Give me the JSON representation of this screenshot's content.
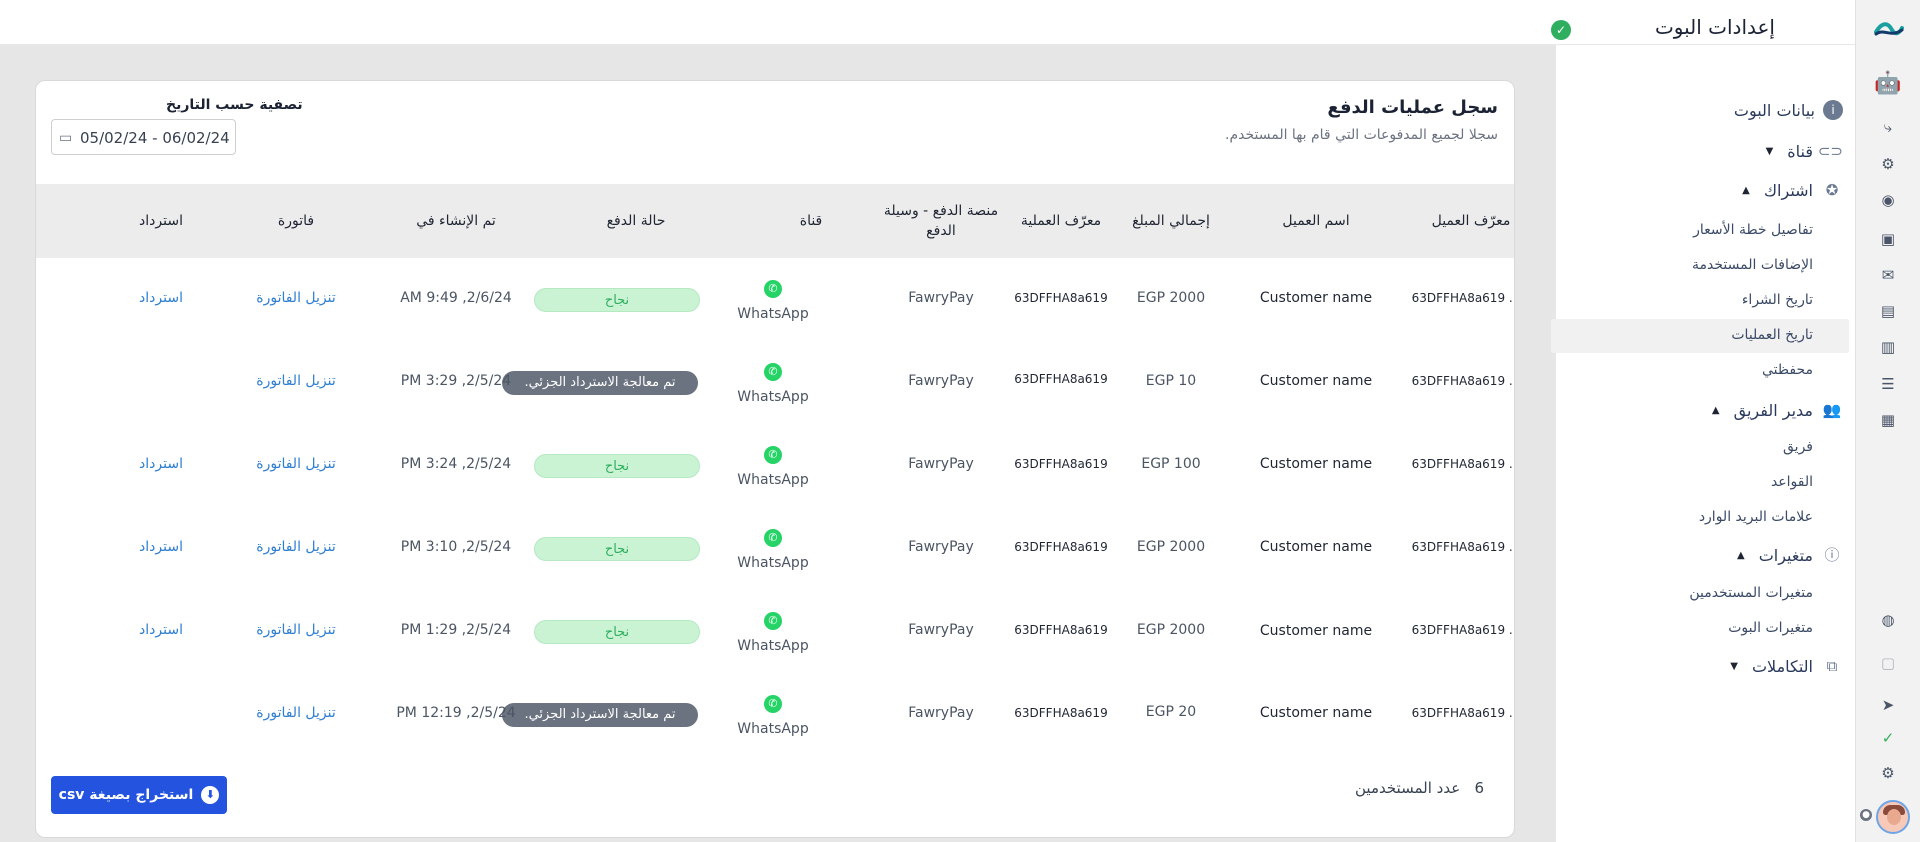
{
  "header": {
    "title": "إعدادات البوت",
    "verified_icon": "check-circle-icon"
  },
  "rail": {
    "icons": [
      "bot-icon",
      "flow-icon",
      "brain-icon",
      "broadcast-icon",
      "contacts-icon",
      "mail-icon",
      "templates-icon",
      "analytics-icon",
      "tasks-icon",
      "store-icon",
      "globe-icon",
      "lock-icon",
      "send-icon",
      "check-icon",
      "gear-icon"
    ]
  },
  "sidebar": {
    "items": [
      {
        "label": "بيانات البوت",
        "icon": "info-icon"
      },
      {
        "label": "قناة",
        "icon": "link-icon",
        "caret": "down"
      },
      {
        "label": "اشتراك",
        "icon": "badge-icon",
        "caret": "up"
      },
      {
        "label": "تفاصيل خطة الأسعار"
      },
      {
        "label": "الإضافات المستخدمة"
      },
      {
        "label": "تاريخ الشراء"
      },
      {
        "label": "تاريخ العمليات",
        "active": true
      },
      {
        "label": "محفظتي"
      },
      {
        "label": "مدير الفريق",
        "icon": "team-icon",
        "caret": "up"
      },
      {
        "label": "فريق"
      },
      {
        "label": "القواعد"
      },
      {
        "label": "علامات البريد الوارد"
      },
      {
        "label": "متغيرات",
        "icon": "variable-icon",
        "caret": "up"
      },
      {
        "label": "متغيرات المستخدمين"
      },
      {
        "label": "متغيرات البوت"
      },
      {
        "label": "التكاملات",
        "icon": "integration-icon",
        "caret": "down"
      }
    ]
  },
  "card": {
    "title": "سجل عمليات الدفع",
    "subtitle": "سجلا لجميع المدفوعات التي قام بها المستخدم.",
    "filter_label": "تصفية حسب التاريخ",
    "date_range": "05/02/24 - 06/02/24"
  },
  "table": {
    "columns": [
      "معرّف العميل",
      "اسم العميل",
      "إجمالي المبلغ",
      "معرّف العملية",
      "منصة الدفع - وسيلة الدفع",
      "قناة",
      "حالة الدفع",
      "تم الإنشاء في",
      "فاتورة",
      "استرداد"
    ],
    "rows": [
      {
        "customer_id": "63DFFHA8a619 ...",
        "name": "Customer name",
        "amount": "EGP 2000",
        "txn": "63DFFHA8a619",
        "platform": "FawryPay",
        "channel": "WhatsApp",
        "status": "نجاح",
        "status_kind": "ok",
        "created": "2/6/24, 9:49 AM",
        "invoice": "تنزيل الفاتورة",
        "refund": "استرداد"
      },
      {
        "customer_id": "63DFFHA8a619 ...",
        "name": "Customer name",
        "amount": "EGP 10",
        "txn": "63DFFHA8a619",
        "platform": "FawryPay",
        "channel": "WhatsApp",
        "status": "تم معالجة الاسترداد الجزئي.",
        "status_kind": "partial",
        "created": "2/5/24, 3:29 PM",
        "invoice": "تنزيل الفاتورة",
        "refund": ""
      },
      {
        "customer_id": "63DFFHA8a619 ...",
        "name": "Customer name",
        "amount": "EGP 100",
        "txn": "63DFFHA8a619",
        "platform": "FawryPay",
        "channel": "WhatsApp",
        "status": "نجاح",
        "status_kind": "ok",
        "created": "2/5/24, 3:24 PM",
        "invoice": "تنزيل الفاتورة",
        "refund": "استرداد"
      },
      {
        "customer_id": "63DFFHA8a619 ...",
        "name": "Customer name",
        "amount": "EGP 2000",
        "txn": "63DFFHA8a619",
        "platform": "FawryPay",
        "channel": "WhatsApp",
        "status": "نجاح",
        "status_kind": "ok",
        "created": "2/5/24, 3:10 PM",
        "invoice": "تنزيل الفاتورة",
        "refund": "استرداد"
      },
      {
        "customer_id": "63DFFHA8a619 ...",
        "name": "Customer name",
        "amount": "EGP 2000",
        "txn": "63DFFHA8a619",
        "platform": "FawryPay",
        "channel": "WhatsApp",
        "status": "نجاح",
        "status_kind": "ok",
        "created": "2/5/24, 1:29 PM",
        "invoice": "تنزيل الفاتورة",
        "refund": "استرداد"
      },
      {
        "customer_id": "63DFFHA8a619 ...",
        "name": "Customer name",
        "amount": "EGP 20",
        "txn": "63DFFHA8a619",
        "platform": "FawryPay",
        "channel": "WhatsApp",
        "status": "تم معالجة الاسترداد الجزئي.",
        "status_kind": "partial",
        "created": "2/5/24, 12:19 PM",
        "invoice": "تنزيل الفاتورة",
        "refund": ""
      }
    ]
  },
  "footer": {
    "count_label": "عدد المستخدمين",
    "count_value": "6",
    "export_label": "استخراج بصيغة csv"
  }
}
